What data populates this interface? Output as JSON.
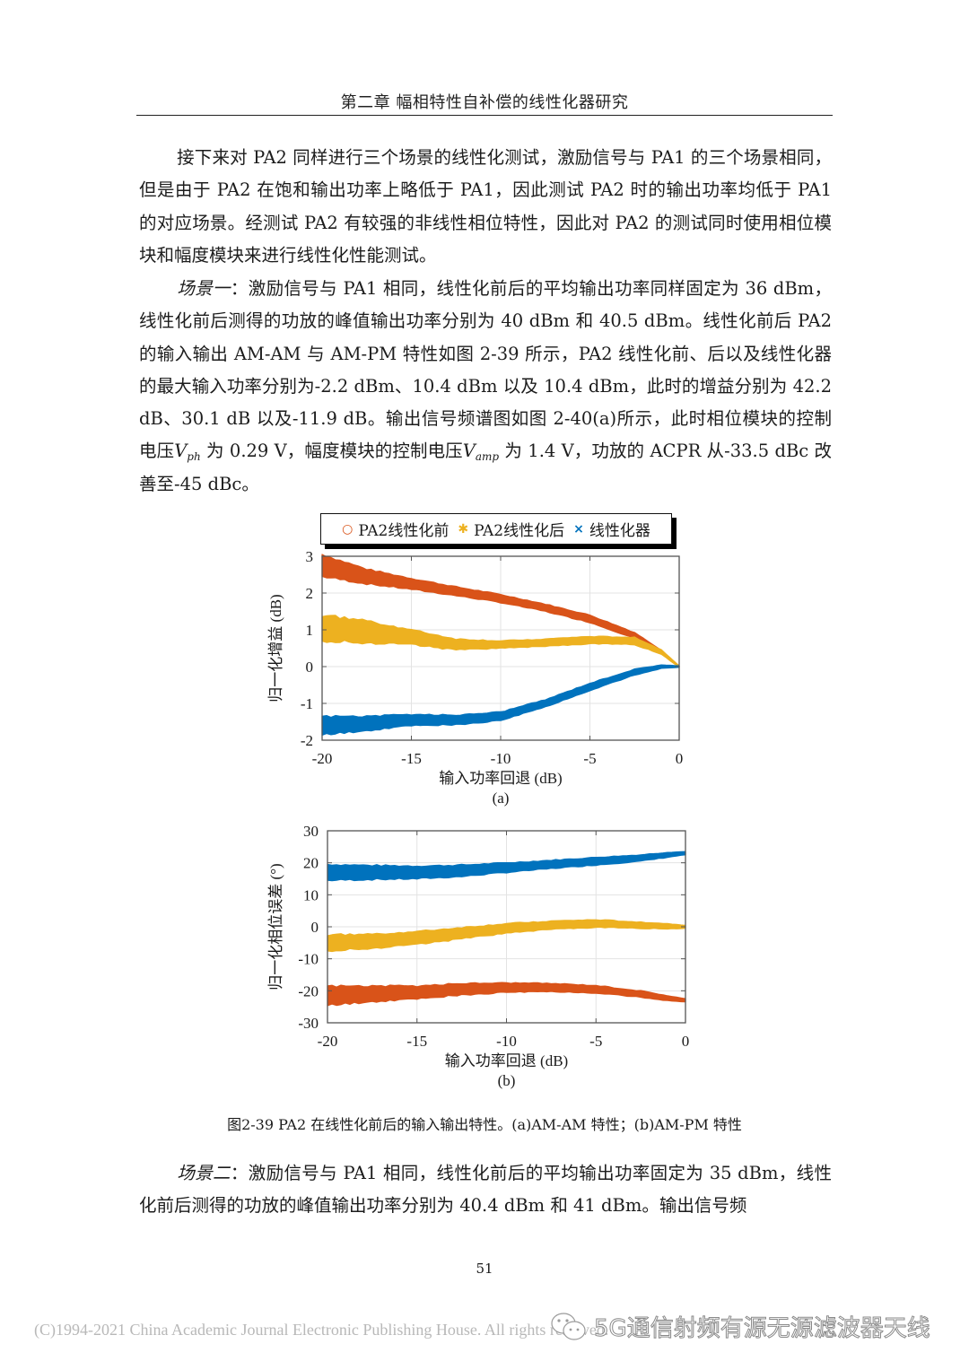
{
  "header": {
    "title": "第二章  幅相特性自补偿的线性化器研究"
  },
  "paragraphs": {
    "p1": "接下来对 PA2 同样进行三个场景的线性化测试，激励信号与 PA1 的三个场景相同，但是由于 PA2 在饱和输出功率上略低于 PA1，因此测试 PA2 时的输出功率均低于 PA1 的对应场景。经测试 PA2 有较强的非线性相位特性，因此对 PA2 的测试同时使用相位模块和幅度模块来进行线性化性能测试。",
    "p2": {
      "lead": "场景一",
      "text_a": "：激励信号与 PA1 相同，线性化前后的平均输出功率同样固定为 36 dBm，线性化前后测得的功放的峰值输出功率分别为 40 dBm 和 40.5 dBm。线性化前后 PA2 的输入输出 AM-AM 与 AM-PM 特性如图 2-39 所示，PA2 线性化前、后以及线性化器的最大输入功率分别为-2.2 dBm、10.4 dBm 以及 10.4 dBm，此时的增益分别为 42.2 dB、30.1 dB 以及-11.9 dB。输出信号频谱图如图 2-40(a)所示，此时相位模块的控制电压",
      "var1": "V",
      "var1_sub": "ph",
      "text_b": " 为 0.29 V，幅度模块的控制电压",
      "var2": "V",
      "var2_sub": "amp",
      "text_c": " 为 1.4 V，功放的 ACPR 从-33.5 dBc 改善至-45 dBc。"
    },
    "p3": {
      "lead": "场景二",
      "text": "：激励信号与 PA1 相同，线性化前后的平均输出功率固定为 35 dBm，线性化前后测得的功放的峰值输出功率分别为 40.4 dBm 和 41 dBm。输出信号频"
    }
  },
  "legend": [
    {
      "label": "PA2线性化前",
      "marker": "o",
      "color": "#D95319"
    },
    {
      "label": "PA2线性化后",
      "marker": "✱",
      "color": "#EDB120"
    },
    {
      "label": "线性化器",
      "marker": "×",
      "color": "#0072BD"
    }
  ],
  "chart_data": [
    {
      "type": "scatter",
      "panel_label": "(a)",
      "title": "",
      "xlabel": "输入功率回退 (dB)",
      "ylabel": "归一化增益 (dB)",
      "xlim": [
        -20,
        0
      ],
      "ylim": [
        -2,
        3
      ],
      "xticks": [
        -20,
        -15,
        -10,
        -5,
        0
      ],
      "yticks": [
        -2,
        -1,
        0,
        1,
        2,
        3
      ],
      "grid": true,
      "legend_position": "top-outside",
      "x": [
        -20,
        -17.5,
        -15,
        -12.5,
        -10,
        -7.5,
        -5,
        -2.5,
        -1,
        0
      ],
      "series": [
        {
          "name": "PA2线性化前",
          "color": "#D95319",
          "values": [
            2.75,
            2.45,
            2.25,
            2.05,
            1.85,
            1.6,
            1.3,
            0.85,
            0.4,
            0.0
          ],
          "spread": [
            0.3,
            0.2,
            0.15,
            0.12,
            0.11,
            0.1,
            0.1,
            0.08,
            0.05,
            0.02
          ]
        },
        {
          "name": "PA2线性化后",
          "color": "#EDB120",
          "values": [
            1.05,
            0.95,
            0.8,
            0.6,
            0.6,
            0.65,
            0.72,
            0.7,
            0.4,
            0.0
          ],
          "spread": [
            0.35,
            0.3,
            0.2,
            0.15,
            0.1,
            0.1,
            0.1,
            0.1,
            0.06,
            0.02
          ]
        },
        {
          "name": "线性化器",
          "color": "#0072BD",
          "values": [
            -1.6,
            -1.55,
            -1.45,
            -1.45,
            -1.35,
            -1.0,
            -0.55,
            -0.15,
            0.0,
            0.0
          ],
          "spread": [
            0.25,
            0.2,
            0.15,
            0.13,
            0.12,
            0.1,
            0.1,
            0.08,
            0.05,
            0.02
          ]
        }
      ]
    },
    {
      "type": "scatter",
      "panel_label": "(b)",
      "title": "",
      "xlabel": "输入功率回退 (dB)",
      "ylabel": "归一化相位误差 (°)",
      "xlim": [
        -20,
        0
      ],
      "ylim": [
        -30,
        30
      ],
      "xticks": [
        -20,
        -15,
        -10,
        -5,
        0
      ],
      "yticks": [
        -30,
        -20,
        -10,
        0,
        10,
        20,
        30
      ],
      "grid": true,
      "x": [
        -20,
        -17.5,
        -15,
        -12.5,
        -10,
        -7.5,
        -5,
        -2.5,
        -1,
        0
      ],
      "series": [
        {
          "name": "线性化器",
          "color": "#0072BD",
          "values": [
            17,
            17,
            17,
            17.5,
            18.5,
            19.5,
            20.5,
            21.5,
            22.5,
            23
          ],
          "spread": [
            2.5,
            2.2,
            2,
            1.8,
            1.5,
            1.3,
            1.2,
            1.0,
            0.8,
            0.5
          ]
        },
        {
          "name": "PA2线性化后",
          "color": "#EDB120",
          "values": [
            -5,
            -4.5,
            -3.5,
            -2,
            -0.5,
            0.5,
            1,
            0.5,
            0.2,
            0
          ],
          "spread": [
            2.5,
            2.2,
            2,
            1.8,
            1.5,
            1.3,
            1.2,
            1.0,
            0.8,
            0.5
          ]
        },
        {
          "name": "PA2线性化前",
          "color": "#D95319",
          "values": [
            -21.5,
            -21,
            -20.5,
            -19.5,
            -19,
            -19,
            -19.5,
            -21,
            -22.3,
            -23
          ],
          "spread": [
            3,
            2.5,
            2,
            1.8,
            1.5,
            1.3,
            1.2,
            1.0,
            0.8,
            0.5
          ]
        }
      ]
    }
  ],
  "figure_caption": "图2-39  PA2 在线性化前后的输入输出特性。(a)AM-AM 特性；(b)AM-PM 特性",
  "footer": {
    "page_number": "51",
    "copyright": "(C)1994-2021 China Academic Journal Electronic Publishing House. All rights reserved.",
    "watermark": "5G通信射频有源无源滤波器天线",
    "watermark_icon": "wechat-icon"
  }
}
